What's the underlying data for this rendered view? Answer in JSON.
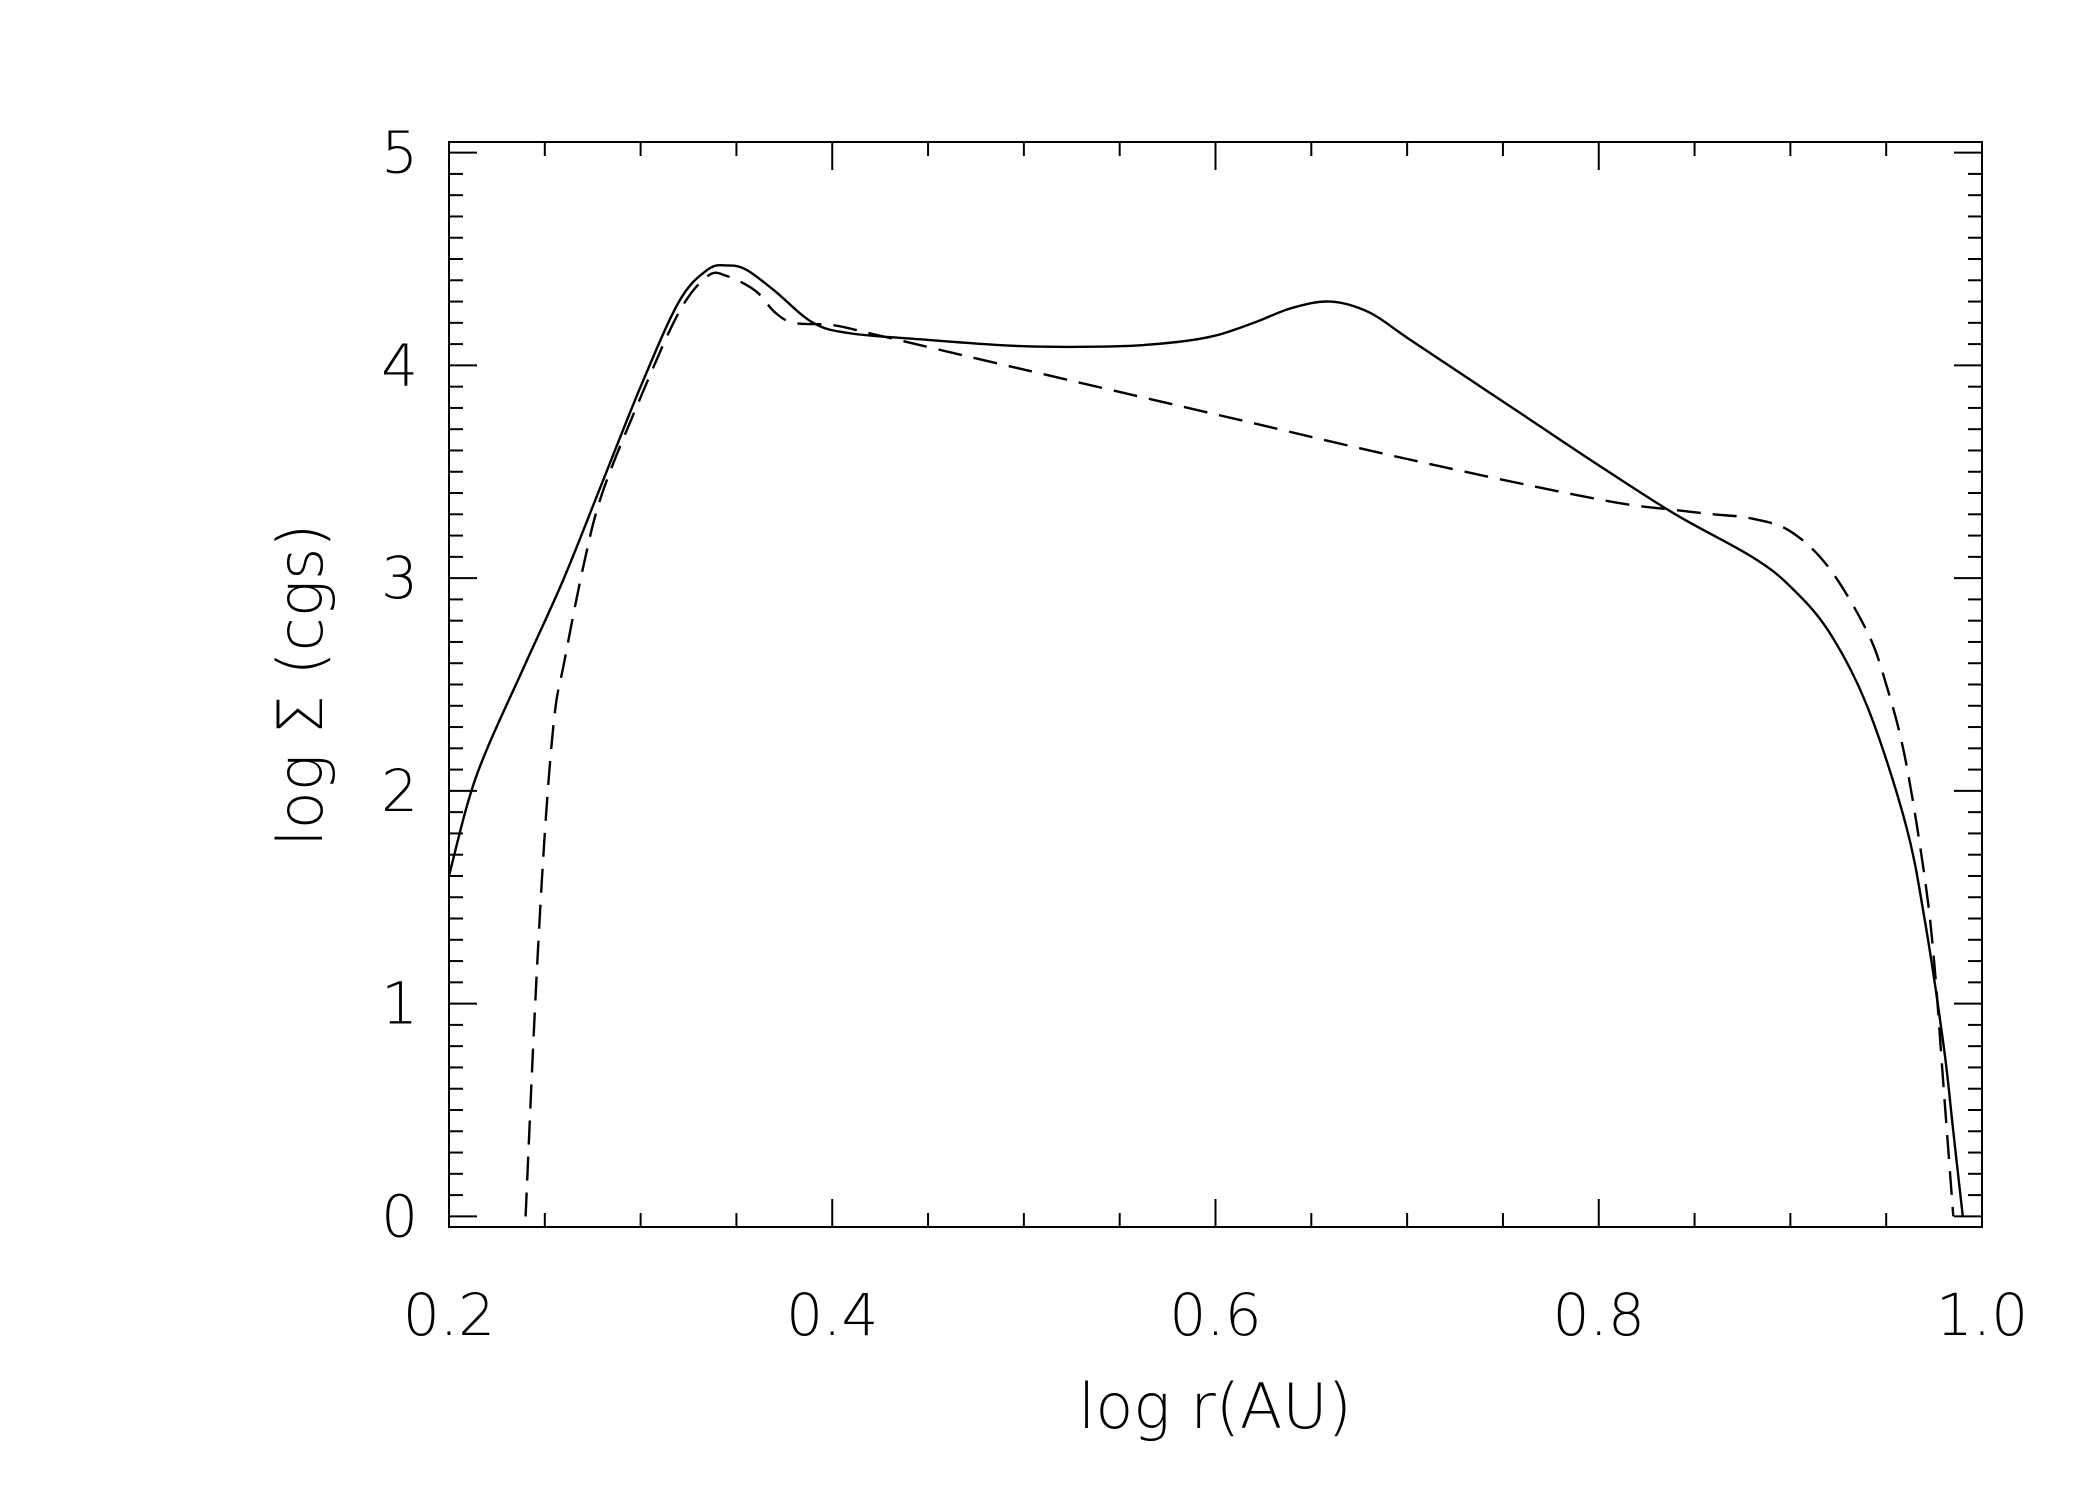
{
  "chart_data": {
    "type": "line",
    "title": "",
    "xlabel": "log r(AU)",
    "ylabel": "log Σ (cgs)",
    "xlim": [
      0.2,
      1.0
    ],
    "ylim": [
      -0.05,
      5.05
    ],
    "x_ticks": [
      0.2,
      0.4,
      0.6,
      0.8,
      1.0
    ],
    "x_tick_labels": [
      "0.2",
      "0.4",
      "0.6",
      "0.8",
      "1.0"
    ],
    "y_ticks": [
      0,
      1,
      2,
      3,
      4,
      5
    ],
    "y_tick_labels": [
      "0",
      "1",
      "2",
      "3",
      "4",
      "5"
    ],
    "grid": false,
    "legend": "none",
    "series": [
      {
        "style": "solid",
        "color": "#000000",
        "x": [
          0.2,
          0.21,
          0.22,
          0.24,
          0.26,
          0.28,
          0.3,
          0.32,
          0.335,
          0.345,
          0.355,
          0.37,
          0.39,
          0.41,
          0.45,
          0.5,
          0.55,
          0.58,
          0.6,
          0.62,
          0.64,
          0.66,
          0.68,
          0.7,
          0.73,
          0.76,
          0.8,
          0.84,
          0.88,
          0.9,
          0.92,
          0.94,
          0.96,
          0.97,
          0.98,
          0.985,
          0.99
        ],
        "y": [
          1.6,
          1.95,
          2.2,
          2.6,
          3.0,
          3.45,
          3.9,
          4.3,
          4.45,
          4.47,
          4.45,
          4.35,
          4.2,
          4.15,
          4.12,
          4.09,
          4.09,
          4.11,
          4.14,
          4.2,
          4.27,
          4.3,
          4.25,
          4.13,
          3.95,
          3.77,
          3.53,
          3.3,
          3.1,
          2.96,
          2.75,
          2.4,
          1.85,
          1.4,
          0.8,
          0.4,
          0.0
        ]
      },
      {
        "style": "dashed",
        "color": "#000000",
        "x": [
          0.24,
          0.245,
          0.25,
          0.255,
          0.26,
          0.27,
          0.28,
          0.3,
          0.32,
          0.335,
          0.345,
          0.36,
          0.37,
          0.38,
          0.4,
          0.42,
          0.5,
          0.6,
          0.7,
          0.8,
          0.84,
          0.86,
          0.88,
          0.9,
          0.92,
          0.94,
          0.95,
          0.96,
          0.97,
          0.975,
          0.98,
          0.985
        ],
        "y": [
          0.0,
          1.0,
          1.8,
          2.35,
          2.6,
          3.05,
          3.4,
          3.85,
          4.25,
          4.42,
          4.42,
          4.35,
          4.25,
          4.2,
          4.19,
          4.15,
          3.98,
          3.77,
          3.56,
          3.37,
          3.32,
          3.3,
          3.28,
          3.22,
          3.05,
          2.75,
          2.5,
          2.15,
          1.6,
          1.2,
          0.6,
          0.0
        ]
      }
    ]
  }
}
